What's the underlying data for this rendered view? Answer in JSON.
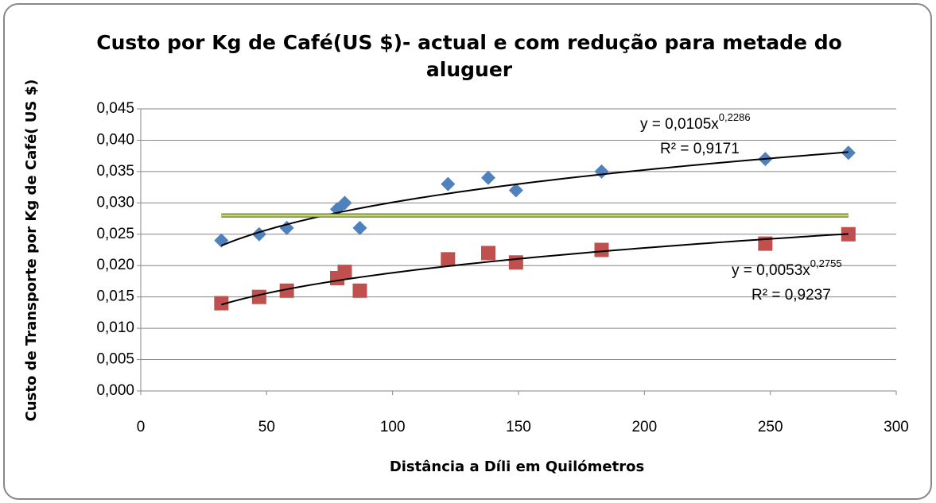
{
  "chart_data": {
    "type": "scatter",
    "title": [
      "Custo por Kg de Café(US $)- actual e com redução para metade do",
      "aluguer"
    ],
    "x_label": "Distância a Díli em Quilómetros",
    "y_label": "Custo de Transporte por Kg de Café( US $)",
    "xlim": [
      0,
      300
    ],
    "xticks": [
      0,
      50,
      100,
      150,
      200,
      250,
      300
    ],
    "ylim": [
      0,
      0.045
    ],
    "yticks": [
      {
        "value": 0,
        "label": "0,000"
      },
      {
        "value": 0.005,
        "label": "0,005"
      },
      {
        "value": 0.01,
        "label": "0,010"
      },
      {
        "value": 0.015,
        "label": "0,015"
      },
      {
        "value": 0.02,
        "label": "0,020"
      },
      {
        "value": 0.025,
        "label": "0,025"
      },
      {
        "value": 0.03,
        "label": "0,030"
      },
      {
        "value": 0.035,
        "label": "0,035"
      },
      {
        "value": 0.04,
        "label": "0,040"
      },
      {
        "value": 0.045,
        "label": "0,045"
      }
    ],
    "grid": true,
    "series": [
      {
        "marker": "diamond",
        "color": "#4f81bd",
        "x": [
          32,
          47,
          58,
          78,
          81,
          87,
          122,
          138,
          149,
          183,
          248,
          281
        ],
        "values": [
          0.024,
          0.025,
          0.026,
          0.029,
          0.03,
          0.026,
          0.033,
          0.034,
          0.032,
          0.035,
          0.037,
          0.038
        ],
        "trendline": {
          "a": 0.0105,
          "b": 0.2286,
          "equation": "y = 0,0105x",
          "exponent": "0,2286",
          "r2": "R² = 0,9171"
        }
      },
      {
        "marker": "square",
        "color": "#c0504d",
        "x": [
          32,
          47,
          58,
          78,
          81,
          87,
          122,
          138,
          149,
          183,
          248,
          281
        ],
        "values": [
          0.014,
          0.015,
          0.016,
          0.018,
          0.019,
          0.016,
          0.021,
          0.022,
          0.0205,
          0.0225,
          0.0235,
          0.025
        ],
        "trendline": {
          "a": 0.0053,
          "b": 0.2755,
          "equation": "y = 0,0053x",
          "exponent": "0,2755",
          "r2": "R² = 0,9237"
        }
      },
      {
        "marker": "line",
        "color": "#c4d96b",
        "x": [
          32,
          281
        ],
        "values": [
          0.028,
          0.028
        ]
      }
    ]
  }
}
